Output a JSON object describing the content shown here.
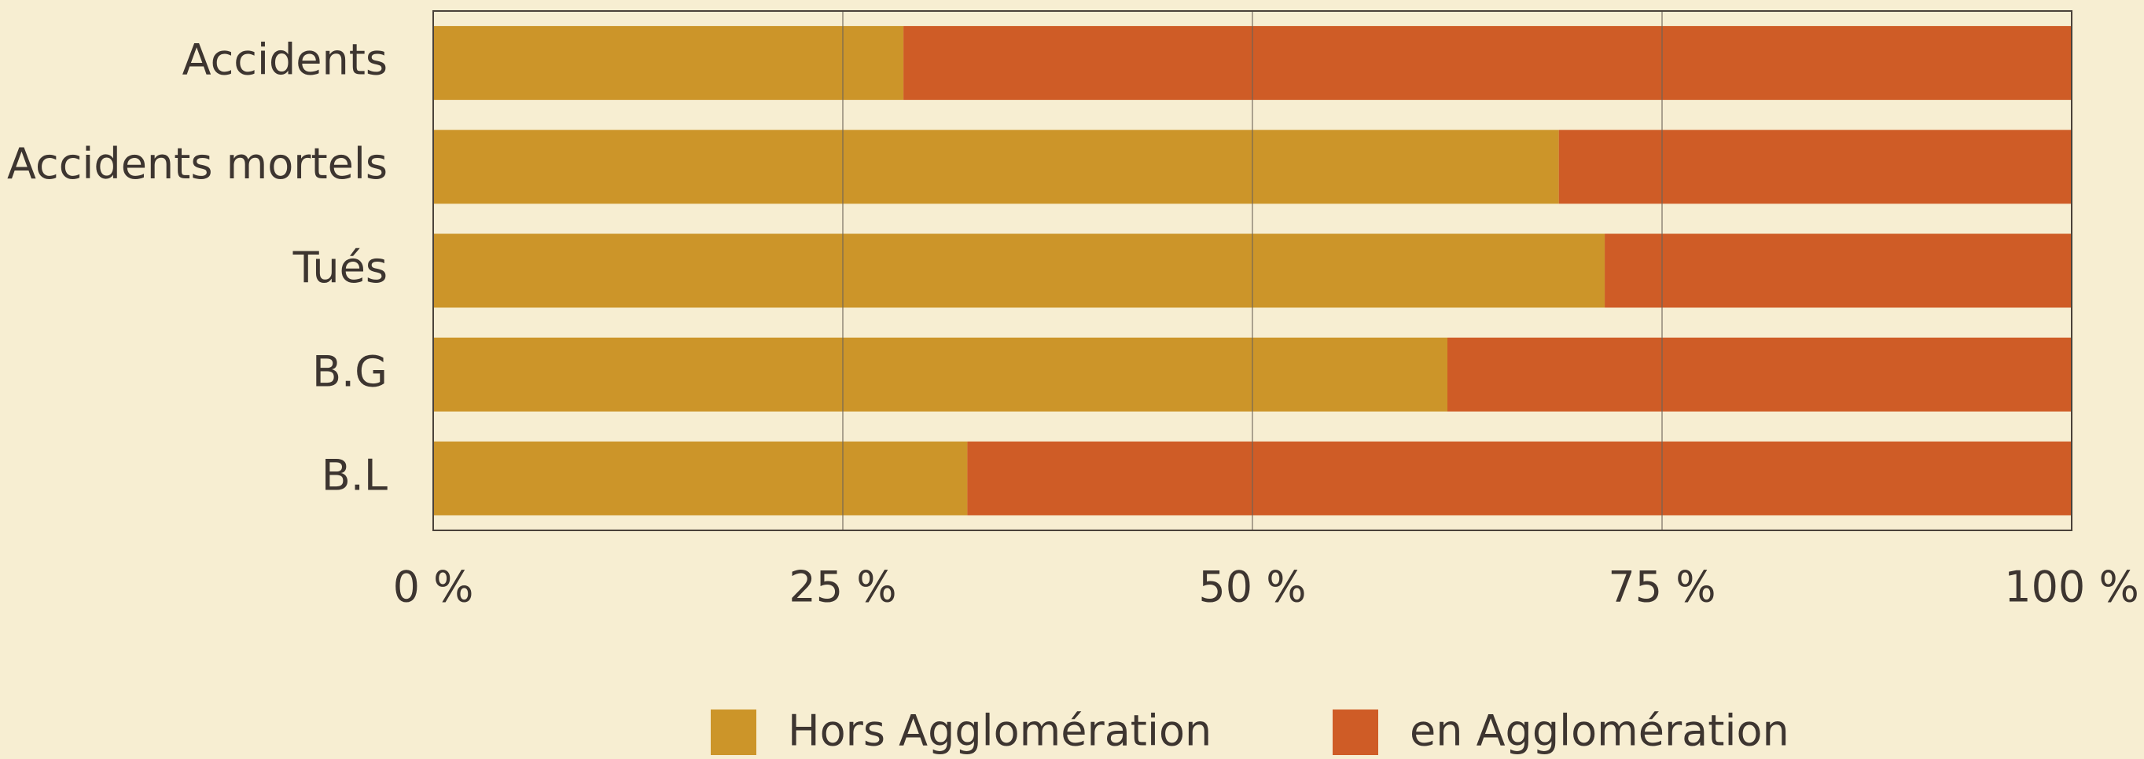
{
  "chart_data": {
    "type": "stacked-bar-horizontal",
    "categories": [
      "Accidents",
      "Accidents mortels",
      "Tués",
      "B.G",
      "B.L"
    ],
    "series": [
      {
        "name": "Hors Agglomération",
        "color": "#cc9529",
        "values": [
          28.7,
          68.7,
          71.5,
          61.9,
          32.6
        ]
      },
      {
        "name": "en Agglomération",
        "color": "#cf5c26",
        "values": [
          71.3,
          31.3,
          28.5,
          38.1,
          67.4
        ]
      }
    ],
    "xlim": [
      0,
      100
    ],
    "xticks": [
      {
        "value": 0,
        "label": "0 %"
      },
      {
        "value": 25,
        "label": "25 %"
      },
      {
        "value": 50,
        "label": "50 %"
      },
      {
        "value": 75,
        "label": "75 %"
      },
      {
        "value": 100,
        "label": "100 %"
      }
    ],
    "grid": true,
    "legend": "bottom"
  }
}
